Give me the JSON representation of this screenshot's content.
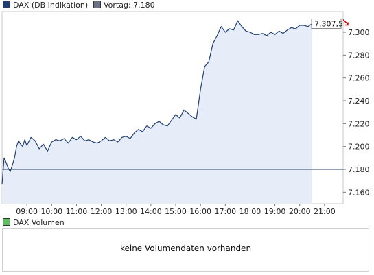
{
  "chart_data": {
    "type": "area",
    "series": [
      {
        "name": "DAX (DB Indikation)",
        "x": [
          "08:00",
          "08:05",
          "08:10",
          "08:15",
          "08:20",
          "08:25",
          "08:30",
          "08:35",
          "08:40",
          "08:45",
          "08:50",
          "08:55",
          "09:00",
          "09:10",
          "09:20",
          "09:30",
          "09:40",
          "09:50",
          "10:00",
          "10:10",
          "10:20",
          "10:30",
          "10:40",
          "10:50",
          "11:00",
          "11:10",
          "11:20",
          "11:30",
          "11:40",
          "11:50",
          "12:00",
          "12:10",
          "12:20",
          "12:30",
          "12:40",
          "12:50",
          "13:00",
          "13:10",
          "13:20",
          "13:30",
          "13:40",
          "13:50",
          "14:00",
          "14:10",
          "14:20",
          "14:30",
          "14:40",
          "14:50",
          "15:00",
          "15:10",
          "15:20",
          "15:30",
          "15:40",
          "15:50",
          "16:00",
          "16:10",
          "16:20",
          "16:30",
          "16:40",
          "16:50",
          "17:00",
          "17:10",
          "17:20",
          "17:30",
          "17:40",
          "17:50",
          "18:00",
          "18:10",
          "18:20",
          "18:30",
          "18:40",
          "18:50",
          "19:00",
          "19:10",
          "19:20",
          "19:30",
          "19:40",
          "19:50",
          "20:00",
          "20:10",
          "20:20",
          "20:30"
        ],
        "values": [
          7167,
          7190,
          7186,
          7181,
          7178,
          7184,
          7190,
          7200,
          7205,
          7202,
          7200,
          7206,
          7201,
          7208,
          7205,
          7198,
          7202,
          7196,
          7204,
          7206,
          7205,
          7207,
          7203,
          7208,
          7206,
          7209,
          7205,
          7206,
          7204,
          7203,
          7205,
          7208,
          7205,
          7206,
          7204,
          7208,
          7209,
          7207,
          7212,
          7215,
          7213,
          7218,
          7216,
          7220,
          7222,
          7219,
          7218,
          7223,
          7228,
          7225,
          7232,
          7229,
          7226,
          7224,
          7250,
          7270,
          7274,
          7290,
          7297,
          7305,
          7300,
          7303,
          7302,
          7310,
          7305,
          7301,
          7300,
          7298,
          7298,
          7299,
          7297,
          7300,
          7298,
          7301,
          7299,
          7302,
          7304,
          7303,
          7306,
          7306,
          7305,
          7307.5
        ]
      }
    ],
    "previous_close": {
      "label": "Vortag: 7.180",
      "value": 7180
    },
    "last_value": {
      "label": "7.307,5",
      "value": 7307.5
    },
    "x_ticks": [
      "09:00",
      "10:00",
      "11:00",
      "12:00",
      "13:00",
      "14:00",
      "15:00",
      "16:00",
      "17:00",
      "18:00",
      "19:00",
      "20:00",
      "21:00"
    ],
    "y_ticks": [
      {
        "label": "7.160",
        "value": 7160
      },
      {
        "label": "7.180",
        "value": 7180
      },
      {
        "label": "7.200",
        "value": 7200
      },
      {
        "label": "7.220",
        "value": 7220
      },
      {
        "label": "7.240",
        "value": 7240
      },
      {
        "label": "7.260",
        "value": 7260
      },
      {
        "label": "7.280",
        "value": 7280
      },
      {
        "label": "7.300",
        "value": 7300
      }
    ],
    "xlim": [
      "08:00",
      "21:45"
    ],
    "ylim": [
      7150,
      7318
    ],
    "grid": false,
    "legend_position": "top-left",
    "colors": {
      "line": "#1f3f73",
      "area_fill": "#e6ecf8",
      "previous_close_line": "#2b3f63",
      "down_arrow": "#cc0000"
    }
  },
  "legend": {
    "dax_label": "DAX (DB Indikation)",
    "dax_color": "#1f3f73",
    "prev_label": "Vortag: 7.180",
    "prev_color": "#6b7388"
  },
  "volume": {
    "legend_label": "DAX Volumen",
    "legend_color": "#5fbf5f",
    "message": "keine Volumendaten vorhanden"
  }
}
